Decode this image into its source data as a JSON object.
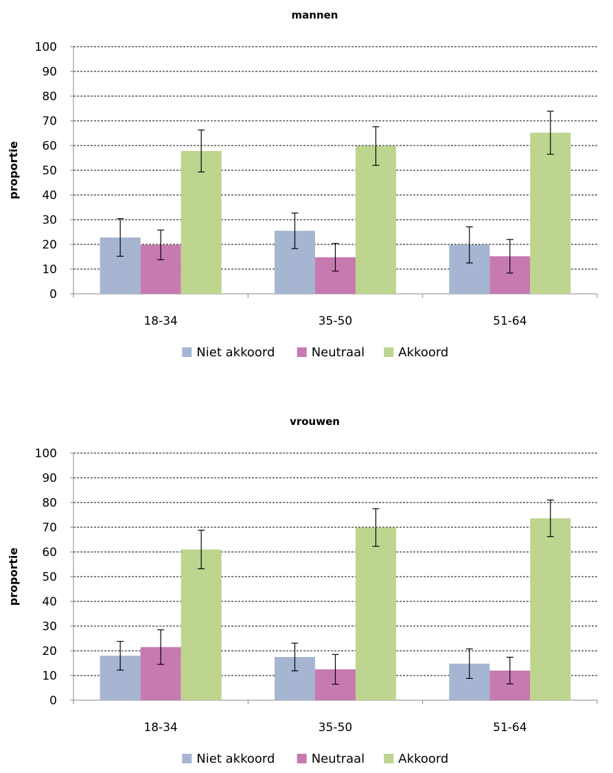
{
  "chart_data": [
    {
      "type": "bar",
      "title": "mannen",
      "ylabel": "proportie",
      "xlabel": "",
      "ylim": [
        0,
        100
      ],
      "yticks": [
        0,
        10,
        20,
        30,
        40,
        50,
        60,
        70,
        80,
        90,
        100
      ],
      "grid": true,
      "legend_position": "bottom",
      "categories": [
        "18-34",
        "35-50",
        "51-64"
      ],
      "series": [
        {
          "name": "Niet akkoord",
          "color": "#a5b5d2",
          "values": [
            22.8,
            25.5,
            19.8
          ],
          "error": [
            7.6,
            7.2,
            7.3
          ]
        },
        {
          "name": "Neutraal",
          "color": "#c77ab0",
          "values": [
            19.8,
            14.8,
            15.2
          ],
          "error": [
            6.0,
            5.6,
            6.8
          ]
        },
        {
          "name": "Akkoord",
          "color": "#bdd58e",
          "values": [
            57.8,
            59.8,
            65.2
          ],
          "error": [
            8.5,
            7.8,
            8.7
          ]
        }
      ]
    },
    {
      "type": "bar",
      "title": "vrouwen",
      "ylabel": "proportie",
      "xlabel": "",
      "ylim": [
        0,
        100
      ],
      "yticks": [
        0,
        10,
        20,
        30,
        40,
        50,
        60,
        70,
        80,
        90,
        100
      ],
      "grid": true,
      "legend_position": "bottom",
      "categories": [
        "18-34",
        "35-50",
        "51-64"
      ],
      "series": [
        {
          "name": "Niet akkoord",
          "color": "#a5b5d2",
          "values": [
            18.0,
            17.5,
            14.8
          ],
          "error": [
            5.8,
            5.6,
            6.0
          ]
        },
        {
          "name": "Neutraal",
          "color": "#c77ab0",
          "values": [
            21.5,
            12.5,
            12.0
          ],
          "error": [
            7.0,
            6.0,
            5.4
          ]
        },
        {
          "name": "Akkoord",
          "color": "#bdd58e",
          "values": [
            61.0,
            69.9,
            73.6
          ],
          "error": [
            7.8,
            7.6,
            7.4
          ]
        }
      ]
    }
  ]
}
